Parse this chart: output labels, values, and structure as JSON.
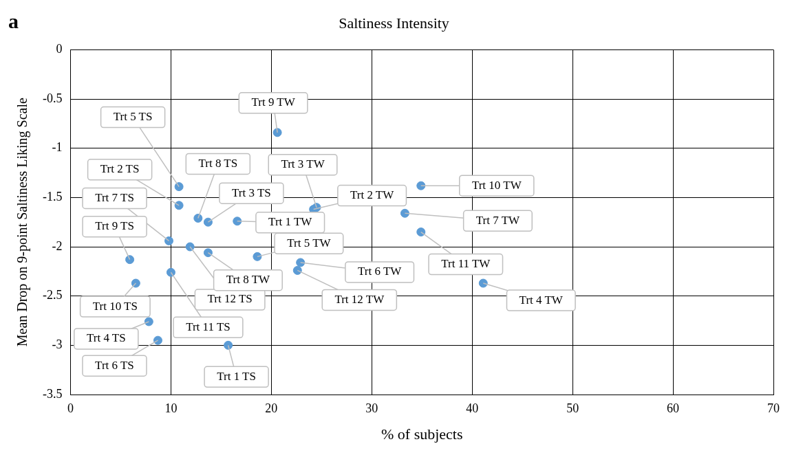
{
  "chart_data": {
    "type": "scatter",
    "title": "Saltiness Intensity",
    "xlabel": "% of subjects",
    "ylabel": "Mean Drop on 9-point Saltiness Liking Scale",
    "x": [
      20.6,
      10.8,
      10.8,
      12.7,
      13.7,
      16.6,
      24.5,
      24.2,
      34.9,
      33.3,
      34.9,
      41.1,
      9.8,
      11.9,
      13.7,
      18.6,
      22.9,
      22.6,
      5.9,
      10.0,
      6.5,
      7.8,
      8.7,
      15.7
    ],
    "values": [
      -0.84,
      -1.39,
      -1.58,
      -1.71,
      -1.75,
      -1.74,
      -1.6,
      -1.62,
      -1.38,
      -1.66,
      -1.85,
      -2.37,
      -1.94,
      -2.0,
      -2.06,
      -2.1,
      -2.16,
      -2.24,
      -2.13,
      -2.26,
      -2.37,
      -2.76,
      -2.95,
      -3.0
    ],
    "color": "#5b9bd5",
    "marker": "circle",
    "grid": true,
    "legend": false,
    "xlim": [
      0,
      70
    ],
    "xticks": [
      0,
      10,
      20,
      30,
      40,
      50,
      60,
      70
    ],
    "ylim": [
      -3.5,
      0
    ],
    "yticks": [
      -3.5,
      -3,
      -2.5,
      -2,
      -1.5,
      -1,
      -0.5,
      0
    ],
    "annotations": [
      "a",
      {
        "text": "Trt 9 TW",
        "x": 20.6,
        "y": -0.84
      },
      {
        "text": "Trt 5 TS",
        "x": 10.8,
        "y": -1.39
      },
      {
        "text": "Trt 2 TS",
        "x": 10.8,
        "y": -1.58
      },
      {
        "text": "Trt 8 TS",
        "x": 12.7,
        "y": -1.71
      },
      {
        "text": "Trt 3 TS",
        "x": 13.7,
        "y": -1.75
      },
      {
        "text": "Trt 1 TW",
        "x": 16.6,
        "y": -1.74
      },
      {
        "text": "Trt 3 TW",
        "x": 24.5,
        "y": -1.6
      },
      {
        "text": "Trt 2 TW",
        "x": 24.2,
        "y": -1.62
      },
      {
        "text": "Trt 10 TW",
        "x": 34.9,
        "y": -1.38
      },
      {
        "text": "Trt 7 TW",
        "x": 33.3,
        "y": -1.66
      },
      {
        "text": "Trt 11 TW",
        "x": 34.9,
        "y": -1.85
      },
      {
        "text": "Trt 4 TW",
        "x": 41.1,
        "y": -2.37
      },
      {
        "text": "Trt 7 TS",
        "x": 9.8,
        "y": -1.94
      },
      {
        "text": "Trt 12 TS",
        "x": 11.9,
        "y": -2.0
      },
      {
        "text": "Trt 8 TW",
        "x": 13.7,
        "y": -2.06
      },
      {
        "text": "Trt 5 TW",
        "x": 18.6,
        "y": -2.1
      },
      {
        "text": "Trt 6 TW",
        "x": 22.9,
        "y": -2.16
      },
      {
        "text": "Trt 12 TW",
        "x": 22.6,
        "y": -2.24
      },
      {
        "text": "Trt 9 TS",
        "x": 5.9,
        "y": -2.13
      },
      {
        "text": "Trt 11 TS",
        "x": 10.0,
        "y": -2.26
      },
      {
        "text": "Trt 10 TS",
        "x": 6.5,
        "y": -2.37
      },
      {
        "text": "Trt 4 TS",
        "x": 7.8,
        "y": -2.76
      },
      {
        "text": "Trt 6 TS",
        "x": 8.7,
        "y": -2.95
      },
      {
        "text": "Trt 1 TS",
        "x": 15.7,
        "y": -3.0
      }
    ]
  }
}
